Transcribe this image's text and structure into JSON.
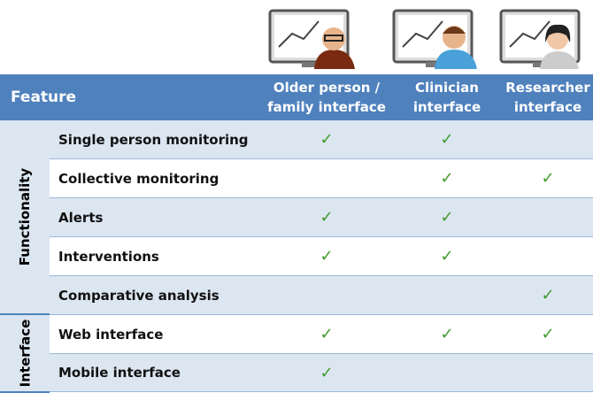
{
  "header": {
    "feature": "Feature",
    "columns": [
      [
        "Older person /",
        "family interface"
      ],
      [
        "Clinician",
        "interface"
      ],
      [
        "Researcher",
        "interface"
      ]
    ]
  },
  "groups": [
    {
      "label": "Functionality",
      "rows": [
        {
          "feature": "Single person monitoring",
          "cells": [
            "✓",
            "✓",
            null
          ]
        },
        {
          "feature": "Collective monitoring",
          "cells": [
            null,
            "✓",
            "✓"
          ]
        },
        {
          "feature": "Alerts",
          "cells": [
            "✓",
            "✓",
            null
          ]
        },
        {
          "feature": "Interventions",
          "cells": [
            "✓",
            "✓",
            null
          ]
        },
        {
          "feature": "Comparative analysis",
          "cells": [
            null,
            null,
            "✓"
          ]
        }
      ]
    },
    {
      "label": "Interface",
      "rows": [
        {
          "feature": "Web interface",
          "cells": [
            "✓",
            "✓",
            "✓"
          ]
        },
        {
          "feature": "Mobile interface",
          "cells": [
            "✓",
            null,
            null
          ]
        }
      ]
    }
  ]
}
